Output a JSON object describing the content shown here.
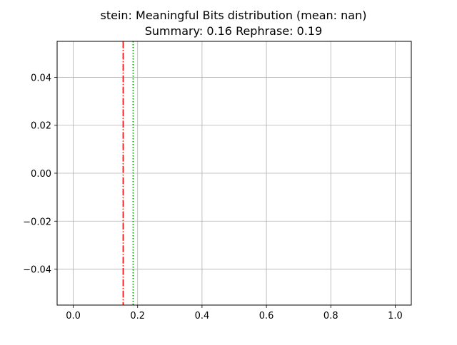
{
  "chart_data": {
    "type": "line",
    "title": "stein: Meaningful Bits distribution (mean: nan)",
    "subtitle": "Summary: 0.16 Rephrase: 0.19",
    "xlabel": "",
    "ylabel": "",
    "xlim": [
      -0.05,
      1.05
    ],
    "ylim": [
      -0.055,
      0.055
    ],
    "grid": true,
    "x_ticks": [
      0.0,
      0.2,
      0.4,
      0.6,
      0.8,
      1.0
    ],
    "x_tick_labels": [
      "0.0",
      "0.2",
      "0.4",
      "0.6",
      "0.8",
      "1.0"
    ],
    "y_ticks": [
      0.04,
      0.02,
      0.0,
      -0.02,
      -0.04
    ],
    "y_tick_labels": [
      "0.04",
      "0.02",
      "0.00",
      "−0.02",
      "−0.04"
    ],
    "vertical_lines": [
      {
        "x": 0.155,
        "color": "#ff0000",
        "style": "dashdot"
      },
      {
        "x": 0.186,
        "color": "#008000",
        "style": "dotted"
      }
    ]
  }
}
